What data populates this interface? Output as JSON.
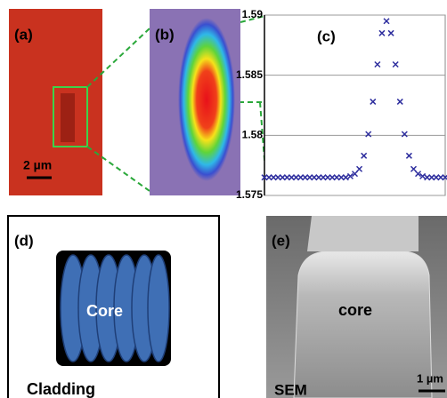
{
  "panels": {
    "a": {
      "label": "(a)",
      "scale_bar": "2 µm"
    },
    "b": {
      "label": "(b)"
    },
    "c": {
      "label": "(c)"
    },
    "d": {
      "label": "(d)",
      "core": "Core",
      "cladding": "Cladding"
    },
    "e": {
      "label": "(e)",
      "core": "core",
      "caption": "SEM",
      "scale_bar": "1 µm"
    }
  },
  "chart_data": {
    "type": "scatter",
    "marker": "x",
    "color": "#2e2e9e",
    "x": [
      0,
      1,
      2,
      3,
      4,
      5,
      6,
      7,
      8,
      9,
      10,
      11,
      12,
      13,
      14,
      15,
      16,
      17,
      18,
      19,
      20,
      21,
      22,
      23,
      24,
      25,
      26,
      27,
      28,
      29,
      30,
      31,
      32,
      33,
      34,
      35,
      36,
      37,
      38,
      39,
      40
    ],
    "values": [
      1.5765,
      1.5765,
      1.5765,
      1.5765,
      1.5765,
      1.5765,
      1.5765,
      1.5765,
      1.5765,
      1.5765,
      1.5765,
      1.5765,
      1.5765,
      1.5765,
      1.5765,
      1.5765,
      1.5765,
      1.5765,
      1.5765,
      1.5766,
      1.5768,
      1.5772,
      1.5783,
      1.5801,
      1.5828,
      1.5859,
      1.5885,
      1.5895,
      1.5885,
      1.5859,
      1.5828,
      1.5801,
      1.5783,
      1.5772,
      1.5768,
      1.5766,
      1.5765,
      1.5765,
      1.5765,
      1.5765,
      1.5765
    ],
    "xlim": [
      0,
      40
    ],
    "ylim": [
      1.575,
      1.59
    ],
    "yticks": [
      1.575,
      1.58,
      1.585,
      1.59
    ],
    "grid": true
  }
}
